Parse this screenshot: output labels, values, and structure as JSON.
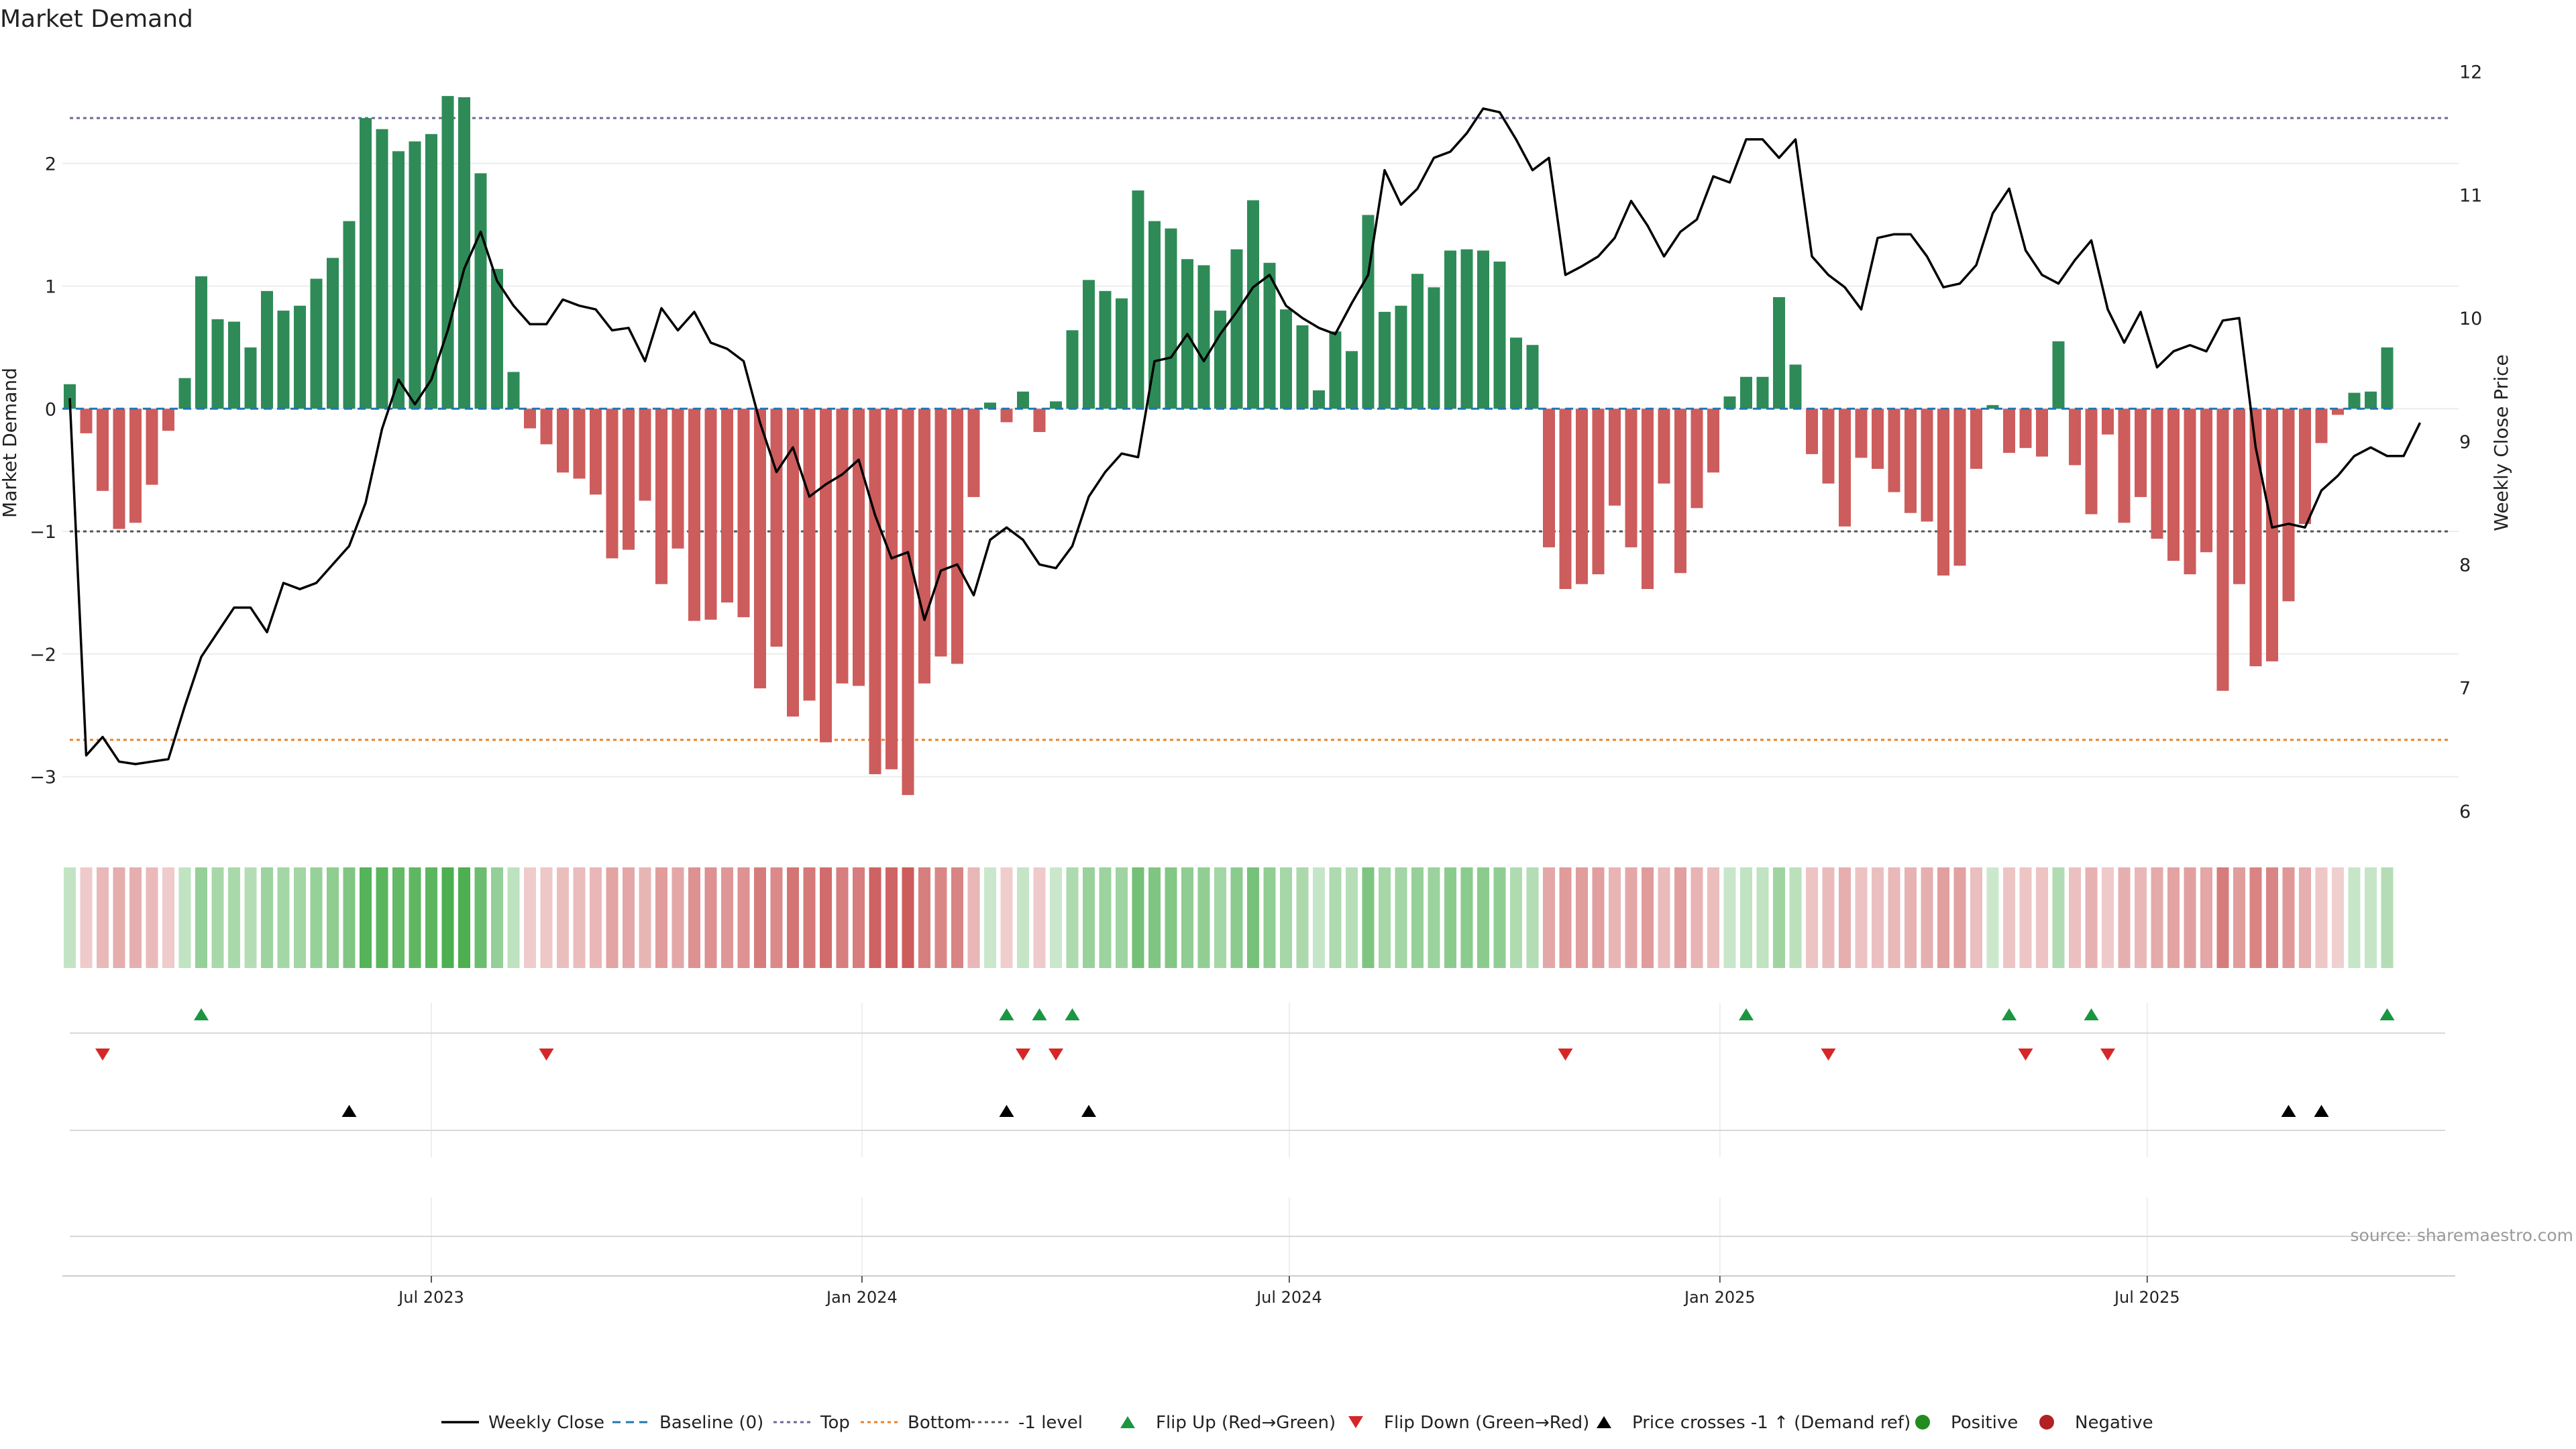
{
  "chart_data": {
    "type": "bar",
    "title": "Market Demand",
    "ylabel": "Market Demand",
    "y2label": "Weekly Close Price",
    "ylim": [
      -3.45,
      2.95
    ],
    "y_ticks": [
      2,
      1,
      0,
      -1,
      -2,
      -3
    ],
    "y_tick_labels": [
      "2",
      "1",
      "0",
      "−1",
      "−2",
      "−3"
    ],
    "y2lim": [
      5.83,
      12.2
    ],
    "y2_ticks": [
      6,
      7,
      8,
      9,
      10,
      11,
      12
    ],
    "y2_tick_labels": [
      "6",
      "7",
      "8",
      "9",
      "10",
      "11",
      "12"
    ],
    "x_tick_labels": [
      "Jul 2023",
      "Jan 2024",
      "Jul 2024",
      "Jan 2025",
      "Jul 2025"
    ],
    "x_tick_week_index": [
      22,
      48.2,
      74.2,
      100.4,
      126.4
    ],
    "reference_lines": {
      "top": 2.37,
      "minus_one": -1,
      "bottom": -2.7
    },
    "demand": [
      0.2,
      -0.2,
      -0.67,
      -0.98,
      -0.93,
      -0.62,
      -0.18,
      0.25,
      1.08,
      0.73,
      0.71,
      0.5,
      0.96,
      0.8,
      0.84,
      1.06,
      1.23,
      1.53,
      2.37,
      2.28,
      2.1,
      2.18,
      2.24,
      2.55,
      2.54,
      1.92,
      1.14,
      0.3,
      -0.16,
      -0.29,
      -0.52,
      -0.57,
      -0.7,
      -1.22,
      -1.15,
      -0.75,
      -1.43,
      -1.14,
      -1.73,
      -1.72,
      -1.58,
      -1.7,
      -2.28,
      -1.94,
      -2.51,
      -2.38,
      -2.72,
      -2.24,
      -2.26,
      -2.98,
      -2.94,
      -3.15,
      -2.24,
      -2.02,
      -2.08,
      -0.72,
      0.05,
      -0.11,
      0.14,
      -0.19,
      0.06,
      0.64,
      1.05,
      0.96,
      0.9,
      1.78,
      1.53,
      1.47,
      1.22,
      1.17,
      0.8,
      1.3,
      1.7,
      1.19,
      0.81,
      0.68,
      0.15,
      0.63,
      0.47,
      1.58,
      0.79,
      0.84,
      1.1,
      0.99,
      1.29,
      1.3,
      1.29,
      1.2,
      0.58,
      0.52,
      -1.13,
      -1.47,
      -1.43,
      -1.35,
      -0.79,
      -1.13,
      -1.47,
      -0.61,
      -1.34,
      -0.81,
      -0.52,
      0.1,
      0.26,
      0.26,
      0.91,
      0.36,
      -0.37,
      -0.61,
      -0.96,
      -0.4,
      -0.49,
      -0.68,
      -0.85,
      -0.92,
      -1.36,
      -1.28,
      -0.49,
      0.03,
      -0.36,
      -0.32,
      -0.39,
      0.55,
      -0.46,
      -0.86,
      -0.21,
      -0.93,
      -0.72,
      -1.06,
      -1.24,
      -1.35,
      -1.17,
      -2.3,
      -1.43,
      -2.1,
      -2.06,
      -1.57,
      -0.94,
      -0.28,
      -0.05,
      0.13,
      0.14,
      0.5
    ],
    "close": [
      9.35,
      6.45,
      6.6,
      6.4,
      6.38,
      6.4,
      6.42,
      6.85,
      7.25,
      7.45,
      7.65,
      7.65,
      7.45,
      7.85,
      7.8,
      7.85,
      8.0,
      8.15,
      8.5,
      9.1,
      9.5,
      9.3,
      9.5,
      9.9,
      10.4,
      10.7,
      10.3,
      10.1,
      9.95,
      9.95,
      10.15,
      10.1,
      10.07,
      9.9,
      9.92,
      9.65,
      10.08,
      9.9,
      10.05,
      9.8,
      9.75,
      9.65,
      9.15,
      8.75,
      8.95,
      8.55,
      8.65,
      8.73,
      8.85,
      8.4,
      8.05,
      8.1,
      7.55,
      7.95,
      8.0,
      7.75,
      8.2,
      8.3,
      8.2,
      8.0,
      7.97,
      8.15,
      8.55,
      8.75,
      8.9,
      8.87,
      9.65,
      9.68,
      9.87,
      9.65,
      9.87,
      10.05,
      10.25,
      10.35,
      10.1,
      10.0,
      9.92,
      9.87,
      10.12,
      10.35,
      11.2,
      10.92,
      11.05,
      11.3,
      11.35,
      11.5,
      11.7,
      11.67,
      11.45,
      11.2,
      11.3,
      10.35,
      10.42,
      10.5,
      10.65,
      10.95,
      10.75,
      10.5,
      10.7,
      10.8,
      11.15,
      11.1,
      11.45,
      11.45,
      11.3,
      11.45,
      10.5,
      10.35,
      10.25,
      10.07,
      10.65,
      10.68,
      10.68,
      10.5,
      10.25,
      10.28,
      10.43,
      10.85,
      11.05,
      10.55,
      10.35,
      10.28,
      10.47,
      10.63,
      10.07,
      9.8,
      10.05,
      9.6,
      9.73,
      9.78,
      9.73,
      9.98,
      10.0,
      8.95,
      8.3,
      8.33,
      8.3,
      8.6,
      8.72,
      8.88,
      8.95,
      8.88,
      8.88,
      9.15
    ],
    "flip_up_weeks": [
      8,
      57,
      59,
      61,
      102,
      118,
      123,
      141
    ],
    "flip_down_weeks": [
      2,
      29,
      58,
      60,
      91,
      107,
      119,
      124
    ],
    "price_cross_weeks": [
      17,
      57,
      62,
      135,
      137
    ],
    "source": "source: sharemaestro.com",
    "legend": {
      "position": "bottom-center",
      "items": [
        {
          "label": "Weekly Close",
          "marker": "line",
          "color": "#000000"
        },
        {
          "label": "Baseline (0)",
          "marker": "dash",
          "color": "#1f77b4"
        },
        {
          "label": "Top",
          "marker": "dot",
          "color": "#6a6a9a"
        },
        {
          "label": "Bottom",
          "marker": "dot",
          "color": "#e8822a"
        },
        {
          "label": "-1 level",
          "marker": "dot",
          "color": "#555555"
        },
        {
          "label": "Flip Up (Red→Green)",
          "marker": "tri-up",
          "color": "#1a9641"
        },
        {
          "label": "Flip Down (Green→Red)",
          "marker": "tri-down",
          "color": "#d62728"
        },
        {
          "label": "Price crosses -1 ↑ (Demand ref)",
          "marker": "tri-up",
          "color": "#000000"
        },
        {
          "label": "Positive",
          "marker": "circle",
          "color": "#228b22"
        },
        {
          "label": "Negative",
          "marker": "circle",
          "color": "#b22222"
        }
      ]
    },
    "colors": {
      "positive_bar": "#2e8b57",
      "negative_bar": "#cd5c5c",
      "price_line": "#000000",
      "heat_positive": "#4caf50",
      "heat_negative": "#cd5c5c"
    }
  }
}
